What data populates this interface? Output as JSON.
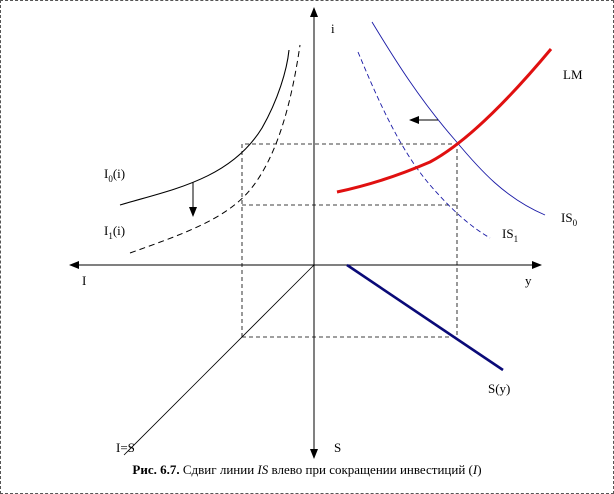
{
  "labels": {
    "i_axis": "i",
    "y_axis": "y",
    "I_axis": "I",
    "S_axis": "S",
    "LM": "LM",
    "IS0_main": "IS",
    "IS0_sub": "0",
    "IS1_main": "IS",
    "IS1_sub": "1",
    "I0_pre": "I",
    "I0_sub": "0",
    "I0_post": "(i)",
    "I1_pre": "I",
    "I1_sub": "1",
    "I1_post": "(i)",
    "Sy": "S(y)",
    "IeqS": "I=S"
  },
  "caption": {
    "fig": "Рис. 6.7.",
    "text1": " Сдвиг линии ",
    "IS": "IS",
    "text2": " влево при сокращении инвестиций (",
    "I": "I",
    "text3": ")"
  },
  "colors": {
    "axis": "#000000",
    "lm": "#e01010",
    "is_curves": "#1a1aa6",
    "savings": "#0a0a78",
    "investment": "#000000",
    "dashed_guides": "#000000"
  }
}
